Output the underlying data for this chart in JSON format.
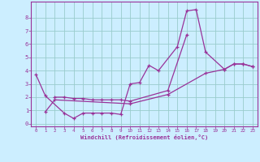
{
  "xlabel": "Windchill (Refroidissement éolien,°C)",
  "bg_color": "#cceeff",
  "line_color": "#993399",
  "grid_color": "#99cccc",
  "xlim": [
    -0.5,
    23.5
  ],
  "ylim": [
    -0.2,
    9.2
  ],
  "xticks": [
    0,
    1,
    2,
    3,
    4,
    5,
    6,
    7,
    8,
    9,
    10,
    11,
    12,
    13,
    14,
    15,
    16,
    17,
    18,
    19,
    20,
    21,
    22,
    23
  ],
  "yticks": [
    0,
    1,
    2,
    3,
    4,
    5,
    6,
    7,
    8
  ],
  "series": [
    {
      "x": [
        0,
        1,
        3,
        4,
        5,
        6,
        7,
        8,
        9,
        10,
        11,
        12,
        13,
        15,
        16,
        17,
        18,
        20,
        21,
        22,
        23
      ],
      "y": [
        3.7,
        2.1,
        0.8,
        0.4,
        0.8,
        0.8,
        0.8,
        0.8,
        0.7,
        3.0,
        3.1,
        4.4,
        4.0,
        5.8,
        8.5,
        8.6,
        5.4,
        4.1,
        4.5,
        4.5,
        4.3
      ]
    },
    {
      "x": [
        2,
        3,
        4,
        5,
        6,
        7,
        8,
        9,
        10,
        14,
        16
      ],
      "y": [
        2.0,
        2.0,
        1.9,
        1.9,
        1.8,
        1.8,
        1.8,
        1.8,
        1.7,
        2.5,
        6.7
      ]
    },
    {
      "x": [
        1,
        2,
        10,
        14,
        18,
        20,
        21,
        22,
        23
      ],
      "y": [
        0.9,
        1.8,
        1.5,
        2.2,
        3.8,
        4.1,
        4.5,
        4.5,
        4.3
      ]
    }
  ]
}
